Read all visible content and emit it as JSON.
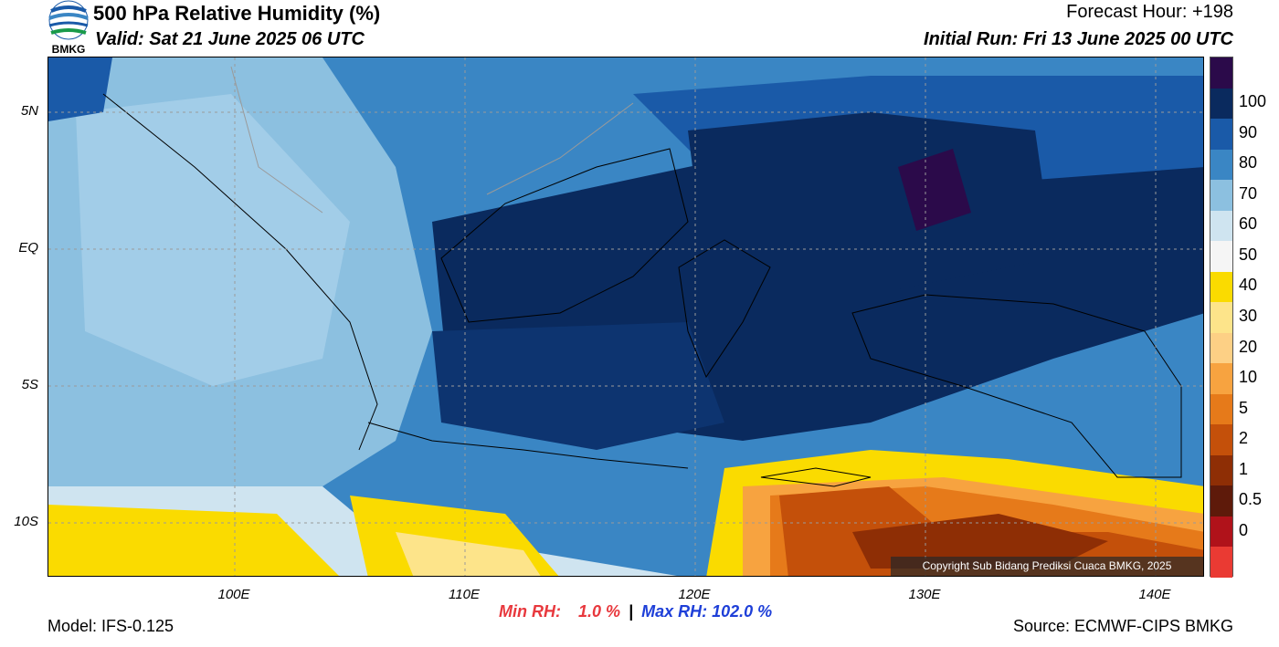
{
  "header": {
    "title": "500 hPa Relative Humidity (%)",
    "valid": "Valid: Sat 21 June 2025 06 UTC",
    "forecast_hour": "Forecast Hour: +198",
    "initial_run": "Initial Run: Fri 13 June 2025 00 UTC",
    "logo_text": "BMKG"
  },
  "map": {
    "lat_labels": [
      "5N",
      "EQ",
      "5S",
      "10S"
    ],
    "lon_labels": [
      "100E",
      "110E",
      "120E",
      "130E",
      "140E"
    ],
    "copyright": "Copyright Sub Bidang Prediksi Cuaca BMKG, 2025",
    "colorbar": {
      "labels": [
        "100",
        "90",
        "80",
        "70",
        "60",
        "50",
        "40",
        "30",
        "20",
        "10",
        "5",
        "2",
        "1",
        "0.5",
        "0"
      ],
      "colors": [
        "#2b0a4a",
        "#0a2a5e",
        "#1a5aa8",
        "#3a86c4",
        "#8cc0e0",
        "#cfe4f0",
        "#f5f5f5",
        "#fadb00",
        "#fde48a",
        "#fdd085",
        "#f7a340",
        "#e67a1a",
        "#c4500a",
        "#8e2e05",
        "#5e1a0a",
        "#b0121a",
        "#ea3a33"
      ]
    }
  },
  "footer": {
    "min_label": "Min RH:",
    "min_value": "1.0 %",
    "separator": "|",
    "max_label": "Max RH: 102.0 %",
    "model": "Model: IFS-0.125",
    "source": "Source: ECMWF-CIPS BMKG"
  }
}
